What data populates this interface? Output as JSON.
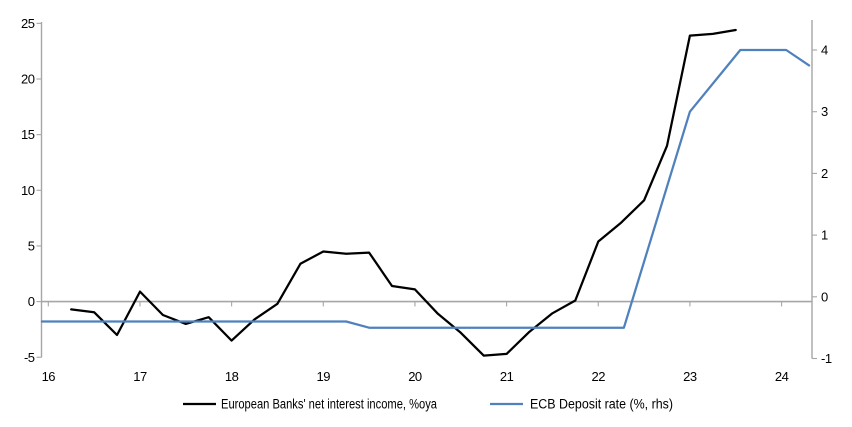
{
  "chart_data": {
    "type": "line",
    "title": "",
    "x_axis": {
      "tick_labels": [
        "16",
        "17",
        "18",
        "19",
        "20",
        "21",
        "22",
        "23",
        "24"
      ],
      "tick_values": [
        16,
        17,
        18,
        19,
        20,
        21,
        22,
        23,
        24
      ],
      "min": 16,
      "max": 24.4
    },
    "left_y_axis": {
      "tick_labels": [
        "25",
        "20",
        "15",
        "10",
        "5",
        "0",
        "-5"
      ],
      "tick_values": [
        25,
        20,
        15,
        10,
        5,
        0,
        -5
      ],
      "min": -5,
      "max": 25
    },
    "right_y_axis": {
      "tick_labels": [
        "4",
        "3",
        "2",
        "1",
        "0",
        "-1"
      ],
      "tick_values": [
        4,
        3,
        2,
        1,
        0,
        -1
      ],
      "min": -1,
      "max": 4
    },
    "grid": "horizontal zero line only",
    "legend_position": "bottom-center",
    "series": [
      {
        "name": "European Banks' net interest income, %oya",
        "axis": "left",
        "color": "#000000",
        "x": [
          16.25,
          16.5,
          16.75,
          17,
          17.25,
          17.5,
          17.75,
          18,
          18.25,
          18.5,
          18.75,
          19,
          19.25,
          19.5,
          19.75,
          20,
          20.25,
          20.5,
          20.75,
          21,
          21.25,
          21.5,
          21.75,
          22,
          22.25,
          22.5,
          22.75,
          23,
          23.25,
          23.5
        ],
        "values": [
          -0.7,
          -0.95,
          -3,
          0.9,
          -1.2,
          -2,
          -1.4,
          -3.5,
          -1.6,
          -0.2,
          3.4,
          4.5,
          4.3,
          4.4,
          1.4,
          1.1,
          -1.1,
          -2.8,
          -4.85,
          -4.7,
          -2.7,
          -1.05,
          0.1,
          5.4,
          7.1,
          9.1,
          14,
          23.9,
          24.05,
          24.4
        ]
      },
      {
        "name": "ECB Deposit rate (%, rhs)",
        "axis": "right",
        "color": "#4F81BD",
        "x": [
          15.93,
          19.25,
          19.5,
          22.28,
          23,
          23.55,
          24.05,
          24.3
        ],
        "values": [
          -0.4,
          -0.4,
          -0.5,
          -0.5,
          3,
          4,
          4,
          3.75
        ]
      }
    ]
  },
  "colors": {
    "gridline": "#A6A6A6",
    "axis_line": "#A6A6A6",
    "text": "#000000",
    "background": "#FFFFFF"
  }
}
